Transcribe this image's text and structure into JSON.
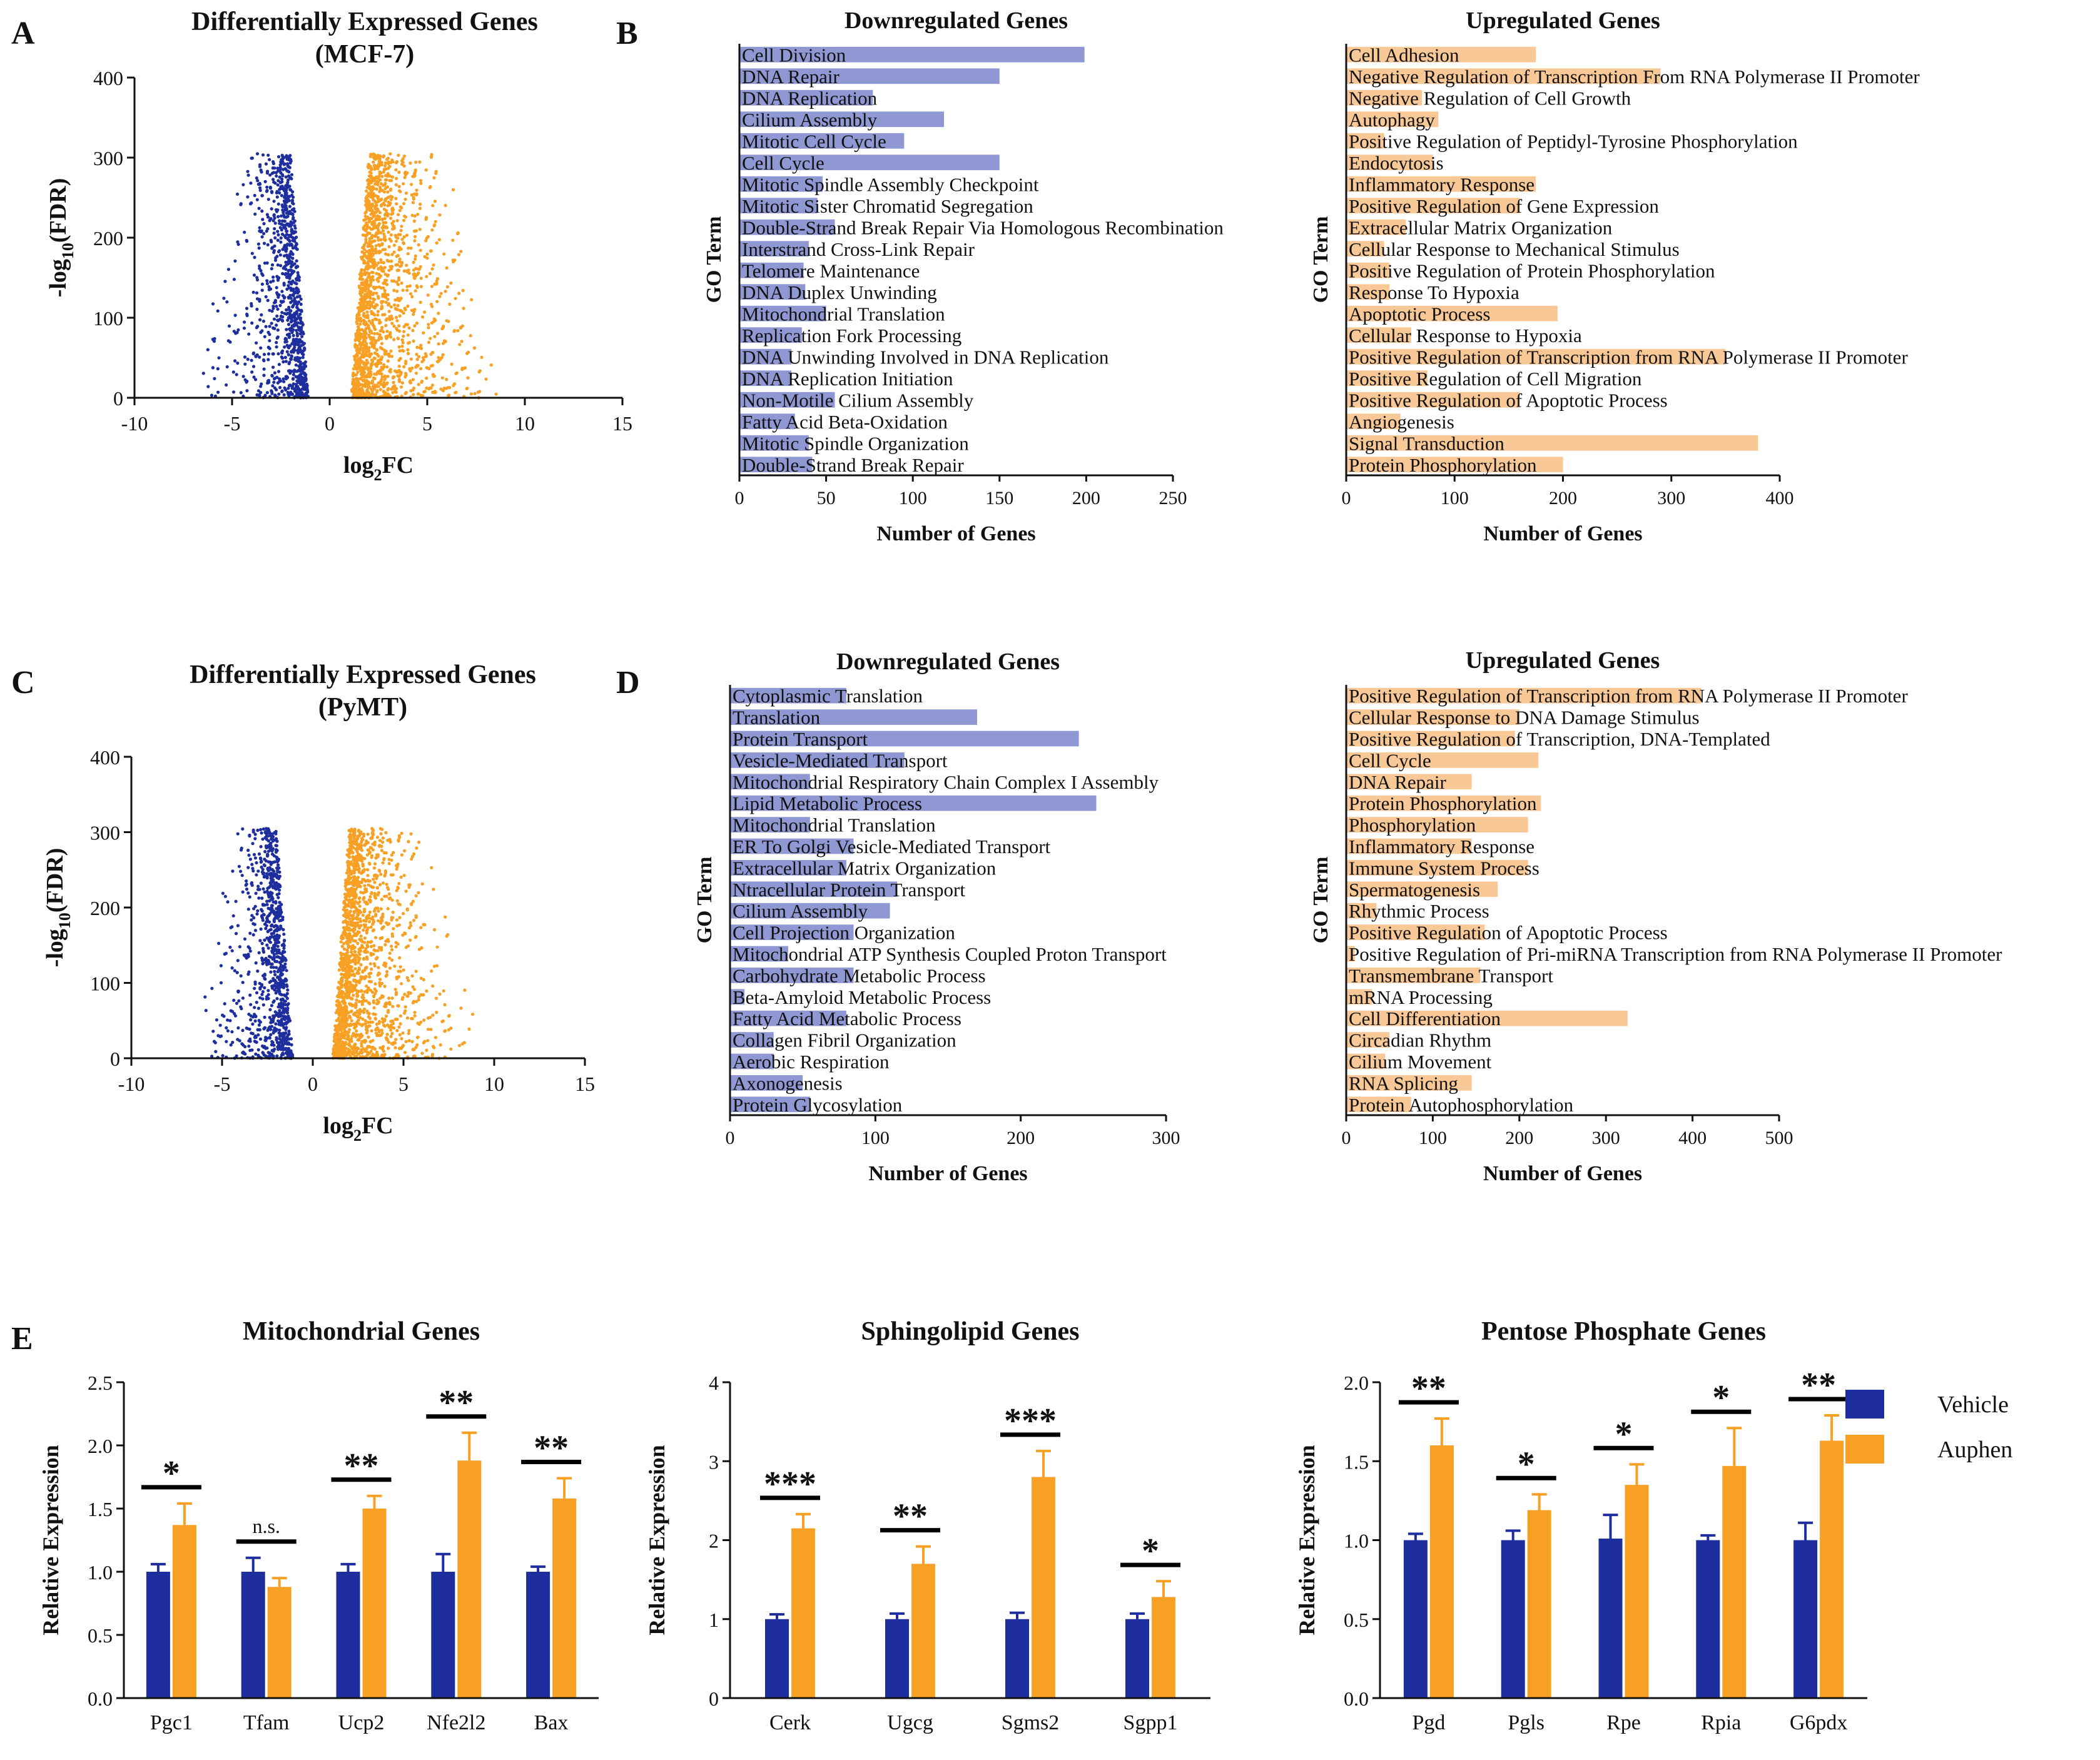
{
  "colors": {
    "vehicle": "#1f2e9e",
    "auphen": "#f7a024",
    "down_bar": "#8f98d2",
    "up_bar": "#f8c896",
    "axis": "#111111",
    "sig": "#000000"
  },
  "panel_labels": [
    "A",
    "B",
    "C",
    "D",
    "E"
  ],
  "chart_data": [
    {
      "id": "A",
      "type": "scatter",
      "title": "Differentially Expressed Genes",
      "subtitle": "(MCF-7)",
      "xlabel_base": "log",
      "xlabel_sub": "2",
      "xlabel_rest": "FC",
      "ylabel_pre": "-log",
      "ylabel_sub": "10",
      "ylabel_post": "(FDR)",
      "xlim": [
        -10,
        15
      ],
      "ylim": [
        0,
        400
      ],
      "xticks": [
        -10,
        -5,
        0,
        5,
        10,
        15
      ],
      "yticks": [
        0,
        100,
        200,
        300,
        400
      ],
      "down_color": "#1f2e9e",
      "up_color": "#f7a024",
      "seed": 11
    },
    {
      "id": "B-down",
      "type": "bar",
      "orientation": "horizontal",
      "title": "Downregulated Genes",
      "xlabel": "Number of Genes",
      "ylabel": "GO Term",
      "xlim": [
        0,
        250
      ],
      "xticks": [
        0,
        50,
        100,
        150,
        200,
        250
      ],
      "categories": [
        "Cell Division",
        "DNA Repair",
        "DNA Replication",
        "Cilium Assembly",
        "Mitotic Cell Cycle",
        "Cell Cycle",
        "Mitotic Spindle Assembly Checkpoint",
        "Mitotic Sister Chromatid Segregation",
        "Double-Strand Break Repair Via Homologous Recombination",
        "Interstrand Cross-Link Repair",
        "Telomere Maintenance",
        "DNA Duplex Unwinding",
        "Mitochondrial Translation",
        "Replication Fork Processing",
        "DNA Unwinding Involved in DNA Replication",
        "DNA Replication Initiation",
        "Non-Motile Cilium Assembly",
        "Fatty Acid Beta-Oxidation",
        "Mitotic Spindle Organization",
        "Double-Strand Break Repair"
      ],
      "values": [
        199,
        150,
        77,
        118,
        95,
        150,
        48,
        45,
        55,
        40,
        37,
        38,
        50,
        36,
        30,
        30,
        55,
        32,
        40,
        42
      ],
      "color": "#8f98d2"
    },
    {
      "id": "B-up",
      "type": "bar",
      "orientation": "horizontal",
      "title": "Upregulated Genes",
      "xlabel": "Number of Genes",
      "ylabel": "GO Term",
      "xlim": [
        0,
        400
      ],
      "xticks": [
        0,
        100,
        200,
        300,
        400
      ],
      "categories": [
        "Cell Adhesion",
        "Negative Regulation of Transcription From RNA Polymerase II Promoter",
        "Negative Regulation of Cell Growth",
        "Autophagy",
        "Positive Regulation of Peptidyl-Tyrosine Phosphorylation",
        "Endocytosis",
        "Inflammatory Response",
        "Positive Regulation of Gene Expression",
        "Extracellular Matrix Organization",
        "Cellular Response to Mechanical Stimulus",
        "Positive Regulation of Protein Phosphorylation",
        "Response To Hypoxia",
        "Apoptotic Process",
        "Cellular Response to Hypoxia",
        "Positive Regulation of Transcription from RNA Polymerase II Promoter",
        "Positive Regulation of Cell Migration",
        "Positive Regulation of Apoptotic Process",
        "Angiogenesis",
        "Signal Transduction",
        "Protein Phosphorylation"
      ],
      "values": [
        175,
        290,
        70,
        85,
        35,
        80,
        175,
        160,
        55,
        35,
        40,
        40,
        195,
        60,
        350,
        75,
        160,
        50,
        380,
        200
      ],
      "color": "#f8c896"
    },
    {
      "id": "C",
      "type": "scatter",
      "title": "Differentially Expressed Genes",
      "subtitle": "(PyMT)",
      "xlabel_base": "log",
      "xlabel_sub": "2",
      "xlabel_rest": "FC",
      "ylabel_pre": "-log",
      "ylabel_sub": "10",
      "ylabel_post": "(FDR)",
      "xlim": [
        -10,
        15
      ],
      "ylim": [
        0,
        400
      ],
      "xticks": [
        -10,
        -5,
        0,
        5,
        10,
        15
      ],
      "yticks": [
        0,
        100,
        200,
        300,
        400
      ],
      "down_color": "#1f2e9e",
      "up_color": "#f7a024",
      "seed": 29
    },
    {
      "id": "D-down",
      "type": "bar",
      "orientation": "horizontal",
      "title": "Downregulated Genes",
      "xlabel": "Number of Genes",
      "ylabel": "GO Term",
      "xlim": [
        0,
        300
      ],
      "xticks": [
        0,
        100,
        200,
        300
      ],
      "categories": [
        "Cytoplasmic Translation",
        "Translation",
        "Protein Transport",
        "Vesicle-Mediated Transport",
        "Mitochondrial Respiratory Chain Complex I Assembly",
        "Lipid Metabolic Process",
        "Mitochondrial Translation",
        "ER To Golgi Vesicle-Mediated Transport",
        "Extracellular Matrix Organization",
        "Ntracellular Protein Transport",
        "Cilium Assembly",
        "Cell Projection Organization",
        "Mitochondrial ATP Synthesis Coupled Proton Transport",
        "Carbohydrate Metabolic Process",
        "Beta-Amyloid Metabolic Process",
        "Fatty Acid Metabolic Process",
        "Collagen Fibril Organization",
        "Aerobic Respiration",
        "Axonogenesis",
        "Protein Glycosylation"
      ],
      "values": [
        80,
        170,
        240,
        120,
        55,
        252,
        55,
        85,
        80,
        115,
        110,
        85,
        40,
        85,
        10,
        80,
        30,
        30,
        50,
        55
      ],
      "color": "#8f98d2"
    },
    {
      "id": "D-up",
      "type": "bar",
      "orientation": "horizontal",
      "title": "Upregulated Genes",
      "xlabel": "Number of Genes",
      "ylabel": "GO Term",
      "xlim": [
        0,
        500
      ],
      "xticks": [
        0,
        100,
        200,
        300,
        400,
        500
      ],
      "categories": [
        "Positive Regulation of Transcription from RNA Polymerase II Promoter",
        "Cellular Response to DNA Damage Stimulus",
        "Positive Regulation of Transcription, DNA-Templated",
        "Cell Cycle",
        "DNA Repair",
        "Protein Phosphorylation",
        "Phosphorylation",
        "Inflammatory Response",
        "Immune System Process",
        "Spermatogenesis",
        "Rhythmic Process",
        "Positive Regulation of Apoptotic Process",
        "Positive Regulation of Pri-miRNA Transcription from RNA Polymerase II Promoter",
        "Transmembrane Transport",
        "mRNA Processing",
        "Cell Differentiation",
        "Circadian Rhythm",
        "Cilium Movement",
        "RNA Splicing",
        "Protein Autophosphorylation"
      ],
      "values": [
        410,
        200,
        195,
        222,
        145,
        225,
        210,
        145,
        210,
        175,
        35,
        160,
        10,
        155,
        30,
        325,
        50,
        45,
        145,
        75
      ],
      "color": "#f8c896"
    },
    {
      "id": "E-mito",
      "type": "bar",
      "orientation": "vertical",
      "title": "Mitochondrial Genes",
      "ylabel": "Relative Expression",
      "ylim": [
        0,
        2.5
      ],
      "yticks": [
        "0.0",
        "0.5",
        "1.0",
        "1.5",
        "2.0",
        "2.5"
      ],
      "categories": [
        "Pgc1",
        "Tfam",
        "Ucp2",
        "Nfe2l2",
        "Bax"
      ],
      "series": [
        {
          "name": "Vehicle",
          "values": [
            1.0,
            1.0,
            1.0,
            1.0,
            1.0
          ],
          "errors": [
            0.06,
            0.11,
            0.06,
            0.14,
            0.04
          ]
        },
        {
          "name": "Auphen",
          "values": [
            1.37,
            0.88,
            1.5,
            1.88,
            1.58
          ],
          "errors": [
            0.17,
            0.07,
            0.1,
            0.22,
            0.16
          ]
        }
      ],
      "significance": [
        "*",
        "n.s.",
        "**",
        "**",
        "**"
      ]
    },
    {
      "id": "E-sphingo",
      "type": "bar",
      "orientation": "vertical",
      "title": "Sphingolipid Genes",
      "ylabel": "Relative Expression",
      "ylim": [
        0,
        4
      ],
      "yticks": [
        "0",
        "1",
        "2",
        "3",
        "4"
      ],
      "categories": [
        "Cerk",
        "Ugcg",
        "Sgms2",
        "Sgpp1"
      ],
      "series": [
        {
          "name": "Vehicle",
          "values": [
            1.0,
            1.0,
            1.0,
            1.0
          ],
          "errors": [
            0.06,
            0.07,
            0.08,
            0.07
          ]
        },
        {
          "name": "Auphen",
          "values": [
            2.15,
            1.7,
            2.8,
            1.28
          ],
          "errors": [
            0.18,
            0.22,
            0.33,
            0.2
          ]
        }
      ],
      "significance": [
        "***",
        "**",
        "***",
        "*"
      ]
    },
    {
      "id": "E-pentose",
      "type": "bar",
      "orientation": "vertical",
      "title": "Pentose Phosphate Genes",
      "ylabel": "Relative Expression",
      "ylim": [
        0,
        2.0
      ],
      "yticks": [
        "0.0",
        "0.5",
        "1.0",
        "1.5",
        "2.0"
      ],
      "categories": [
        "Pgd",
        "Pgls",
        "Rpe",
        "Rpia",
        "G6pdx"
      ],
      "series": [
        {
          "name": "Vehicle",
          "values": [
            1.0,
            1.0,
            1.01,
            1.0,
            1.0
          ],
          "errors": [
            0.04,
            0.06,
            0.15,
            0.03,
            0.11
          ]
        },
        {
          "name": "Auphen",
          "values": [
            1.6,
            1.19,
            1.35,
            1.47,
            1.63
          ],
          "errors": [
            0.17,
            0.1,
            0.13,
            0.24,
            0.16
          ]
        }
      ],
      "significance": [
        "**",
        "*",
        "*",
        "*",
        "**"
      ]
    }
  ],
  "legend": {
    "items": [
      "Vehicle",
      "Auphen"
    ]
  }
}
